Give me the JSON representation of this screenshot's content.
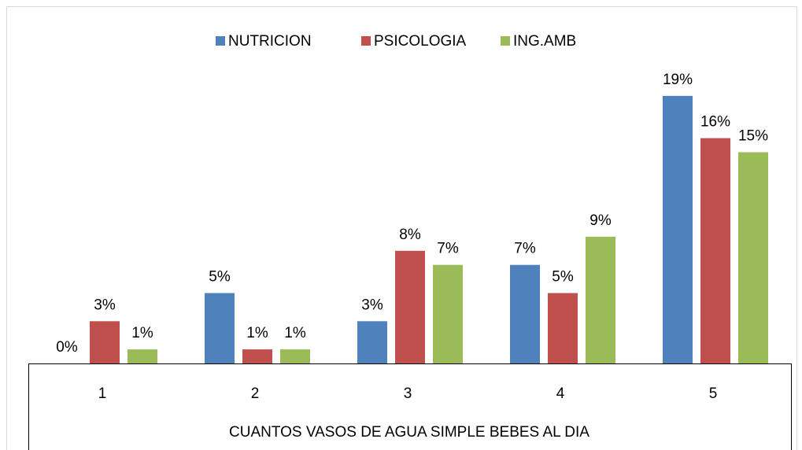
{
  "chart_data": {
    "type": "bar",
    "x_label": "CUANTOS VASOS DE AGUA SIMPLE BEBES AL DIA",
    "categories": [
      "1",
      "2",
      "3",
      "4",
      "5"
    ],
    "series": [
      {
        "name": "NUTRICION",
        "color": "#4f81bd",
        "values": [
          0,
          5,
          3,
          7,
          19
        ],
        "value_labels": [
          "0%",
          "5%",
          "3%",
          "7%",
          "19%"
        ]
      },
      {
        "name": "PSICOLOGIA",
        "color": "#c0504d",
        "values": [
          3,
          1,
          8,
          5,
          16
        ],
        "value_labels": [
          "3%",
          "1%",
          "8%",
          "5%",
          "16%"
        ]
      },
      {
        "name": "ING.AMB",
        "color": "#9bbb59",
        "values": [
          1,
          1,
          7,
          9,
          15
        ],
        "value_labels": [
          "1%",
          "1%",
          "7%",
          "9%",
          "15%"
        ]
      }
    ],
    "ylim": [
      0,
      20
    ],
    "legend": "top"
  }
}
